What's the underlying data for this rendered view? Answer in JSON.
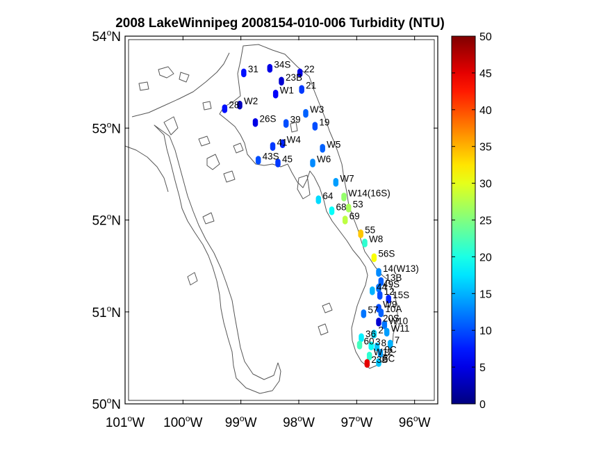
{
  "title": "2008 LakeWinnipeg 2008154-010-006 Turbidity (NTU)",
  "map": {
    "lon_range": [
      -101,
      -95.6
    ],
    "lat_range": [
      50,
      54
    ],
    "lon_ticks": [
      {
        "v": -101,
        "num": "101",
        "hem": "W"
      },
      {
        "v": -100,
        "num": "100",
        "hem": "W"
      },
      {
        "v": -99,
        "num": "99",
        "hem": "W"
      },
      {
        "v": -98,
        "num": "98",
        "hem": "W"
      },
      {
        "v": -97,
        "num": "97",
        "hem": "W"
      },
      {
        "v": -96,
        "num": "96",
        "hem": "W"
      }
    ],
    "lat_ticks": [
      {
        "v": 50,
        "num": "50",
        "hem": "N"
      },
      {
        "v": 51,
        "num": "51",
        "hem": "N"
      },
      {
        "v": 52,
        "num": "52",
        "hem": "N"
      },
      {
        "v": 53,
        "num": "53",
        "hem": "N"
      },
      {
        "v": 54,
        "num": "54",
        "hem": "N"
      }
    ],
    "degree_symbol": "o",
    "coastline_color": "#555555",
    "frame_color": "#000000"
  },
  "colorbar": {
    "min": 0,
    "max": 50,
    "ticks": [
      {
        "v": 0,
        "label": "0"
      },
      {
        "v": 5,
        "label": "5"
      },
      {
        "v": 10,
        "label": "10"
      },
      {
        "v": 15,
        "label": "15"
      },
      {
        "v": 20,
        "label": "20"
      },
      {
        "v": 25,
        "label": "25"
      },
      {
        "v": 30,
        "label": "30"
      },
      {
        "v": 35,
        "label": "35"
      },
      {
        "v": 40,
        "label": "40"
      },
      {
        "v": 45,
        "label": "45"
      },
      {
        "v": 50,
        "label": "50"
      }
    ],
    "colormap": "jet"
  },
  "chart_data": {
    "type": "scatter",
    "title": "2008 LakeWinnipeg 2008154-010-006 Turbidity (NTU)",
    "xlabel": "",
    "ylabel": "",
    "xlim": [
      -101,
      -95.6
    ],
    "ylim": [
      50,
      54
    ],
    "points": [
      {
        "label": "31",
        "lon": -98.95,
        "lat": 53.6,
        "value": 7
      },
      {
        "label": "34S",
        "lon": -98.5,
        "lat": 53.65,
        "value": 5
      },
      {
        "label": "22",
        "lon": -97.98,
        "lat": 53.6,
        "value": 5
      },
      {
        "label": "23B",
        "lon": -98.3,
        "lat": 53.51,
        "value": 4
      },
      {
        "label": "21",
        "lon": -97.95,
        "lat": 53.42,
        "value": 9
      },
      {
        "label": "W1",
        "lon": -98.4,
        "lat": 53.37,
        "value": 6
      },
      {
        "label": "28",
        "lon": -99.28,
        "lat": 53.21,
        "value": 7
      },
      {
        "label": "W2",
        "lon": -99.02,
        "lat": 53.25,
        "value": 3
      },
      {
        "label": "26S",
        "lon": -98.75,
        "lat": 53.06,
        "value": 5
      },
      {
        "label": "39",
        "lon": -98.22,
        "lat": 53.05,
        "value": 10
      },
      {
        "label": "W3",
        "lon": -97.88,
        "lat": 53.16,
        "value": 11
      },
      {
        "label": "19",
        "lon": -97.72,
        "lat": 53.02,
        "value": 10
      },
      {
        "label": "41",
        "lon": -98.45,
        "lat": 52.8,
        "value": 9
      },
      {
        "label": "W4",
        "lon": -98.28,
        "lat": 52.83,
        "value": 8
      },
      {
        "label": "W5",
        "lon": -97.59,
        "lat": 52.78,
        "value": 11
      },
      {
        "label": "43S",
        "lon": -98.7,
        "lat": 52.65,
        "value": 10
      },
      {
        "label": "45",
        "lon": -98.36,
        "lat": 52.62,
        "value": 9
      },
      {
        "label": "W6",
        "lon": -97.76,
        "lat": 52.62,
        "value": 13
      },
      {
        "label": "W7",
        "lon": -97.36,
        "lat": 52.41,
        "value": 14
      },
      {
        "label": "W14(16S)",
        "lon": -97.22,
        "lat": 52.25,
        "value": 26
      },
      {
        "label": "64",
        "lon": -97.66,
        "lat": 52.22,
        "value": 17
      },
      {
        "label": "68",
        "lon": -97.43,
        "lat": 52.1,
        "value": 19
      },
      {
        "label": "53",
        "lon": -97.14,
        "lat": 52.13,
        "value": 27
      },
      {
        "label": "69",
        "lon": -97.2,
        "lat": 52.0,
        "value": 28
      },
      {
        "label": "55",
        "lon": -96.93,
        "lat": 51.85,
        "value": 34
      },
      {
        "label": "W8",
        "lon": -96.86,
        "lat": 51.75,
        "value": 21
      },
      {
        "label": "56S",
        "lon": -96.7,
        "lat": 51.59,
        "value": 31
      },
      {
        "label": "14(W13)",
        "lon": -96.62,
        "lat": 51.43,
        "value": 13
      },
      {
        "label": "13B",
        "lon": -96.58,
        "lat": 51.33,
        "value": 11
      },
      {
        "label": "44",
        "lon": -96.73,
        "lat": 51.23,
        "value": 15
      },
      {
        "label": "49S",
        "lon": -96.62,
        "lat": 51.26,
        "value": 12
      },
      {
        "label": "12",
        "lon": -96.6,
        "lat": 51.18,
        "value": 10
      },
      {
        "label": "15S",
        "lon": -96.45,
        "lat": 51.14,
        "value": 8
      },
      {
        "label": "57",
        "lon": -96.88,
        "lat": 50.98,
        "value": 12
      },
      {
        "label": "W9",
        "lon": -96.62,
        "lat": 51.04,
        "value": 10
      },
      {
        "label": "10A",
        "lon": -96.58,
        "lat": 50.99,
        "value": 11
      },
      {
        "label": "20S",
        "lon": -96.62,
        "lat": 50.89,
        "value": 4
      },
      {
        "label": "W10",
        "lon": -96.52,
        "lat": 50.86,
        "value": 12
      },
      {
        "label": "W11",
        "lon": -96.48,
        "lat": 50.78,
        "value": 14
      },
      {
        "label": "36",
        "lon": -96.92,
        "lat": 50.72,
        "value": 18
      },
      {
        "label": "2",
        "lon": -96.7,
        "lat": 50.76,
        "value": 17
      },
      {
        "label": "7",
        "lon": -96.42,
        "lat": 50.65,
        "value": 15
      },
      {
        "label": "60",
        "lon": -96.95,
        "lat": 50.64,
        "value": 22
      },
      {
        "label": "3",
        "lon": -96.75,
        "lat": 50.63,
        "value": 19
      },
      {
        "label": "8",
        "lon": -96.65,
        "lat": 50.62,
        "value": 16
      },
      {
        "label": "W12",
        "lon": -96.78,
        "lat": 50.52,
        "value": 21
      },
      {
        "label": "9C",
        "lon": -96.59,
        "lat": 50.55,
        "value": 14
      },
      {
        "label": "23B",
        "lon": -96.82,
        "lat": 50.44,
        "value": 45
      },
      {
        "label": "5C",
        "lon": -96.62,
        "lat": 50.45,
        "value": 16
      }
    ]
  }
}
